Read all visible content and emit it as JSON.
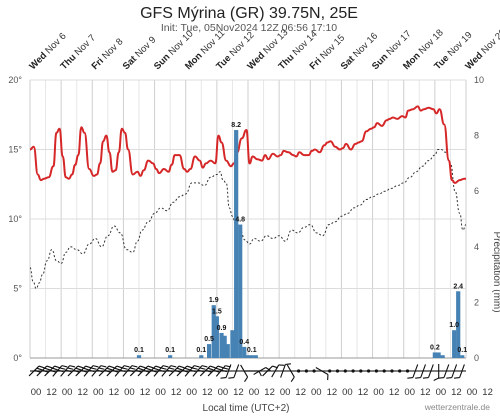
{
  "chart_data": {
    "type": "line",
    "title": "GFS Mýrina (GR) 39.75N, 25E",
    "subtitle": "Init: Tue, 05Nov2024 12Z 06:56 17:10",
    "xlabel": "Local time (UTC+2)",
    "ylabel_right": "Precipitation (mm)",
    "credit": "wetterzentrale.de",
    "y_left_ticks": [
      "0°",
      "5°",
      "10°",
      "15°",
      "20°"
    ],
    "y_left_range": [
      0,
      20
    ],
    "y_right_ticks": [
      "0",
      "2",
      "4",
      "6",
      "8",
      "10"
    ],
    "y_right_range": [
      0,
      10
    ],
    "days": [
      {
        "dow": "Wed",
        "date": "Nov 6"
      },
      {
        "dow": "Thu",
        "date": "Nov 7"
      },
      {
        "dow": "Fri",
        "date": "Nov 8"
      },
      {
        "dow": "Sat",
        "date": "Nov 9"
      },
      {
        "dow": "Sun",
        "date": "Nov 10"
      },
      {
        "dow": "Mon",
        "date": "Nov 11"
      },
      {
        "dow": "Tue",
        "date": "Nov 12"
      },
      {
        "dow": "Wed",
        "date": "Nov 13"
      },
      {
        "dow": "Thu",
        "date": "Nov 14"
      },
      {
        "dow": "Fri",
        "date": "Nov 15"
      },
      {
        "dow": "Sat",
        "date": "Nov 16"
      },
      {
        "dow": "Sun",
        "date": "Nov 17"
      },
      {
        "dow": "Mon",
        "date": "Nov 18"
      },
      {
        "dow": "Tue",
        "date": "Nov 19"
      },
      {
        "dow": "Wed",
        "date": "Nov 20"
      }
    ],
    "hour_labels": [
      "00",
      "12",
      "00",
      "12",
      "00",
      "12",
      "00",
      "12",
      "00",
      "12",
      "00",
      "12",
      "00",
      "12",
      "00",
      "12",
      "00",
      "12",
      "00",
      "12",
      "00",
      "12",
      "00",
      "12",
      "00",
      "12",
      "00",
      "12",
      "00",
      "12"
    ],
    "series": [
      {
        "name": "2m temperature",
        "color": "#d62728",
        "unit": "°C",
        "x_days": [
          0,
          0.12,
          0.25,
          0.35,
          0.45,
          0.6,
          0.75,
          0.85,
          0.95,
          1.05,
          1.15,
          1.25,
          1.35,
          1.45,
          1.55,
          1.65,
          1.75,
          1.9,
          2.05,
          2.15,
          2.25,
          2.35,
          2.45,
          2.55,
          2.65,
          2.75,
          2.85,
          2.95,
          3.05,
          3.15,
          3.3,
          3.45,
          3.55,
          3.65,
          3.8,
          3.95,
          4.05,
          4.15,
          4.3,
          4.45,
          4.55,
          4.65,
          4.8,
          4.95,
          5.05,
          5.15,
          5.3,
          5.45,
          5.55,
          5.65,
          5.8,
          5.95,
          6.05,
          6.15,
          6.3,
          6.45,
          6.55,
          6.65,
          6.8,
          6.95,
          7.05,
          7.15,
          7.3,
          7.45,
          7.55,
          7.65,
          7.8,
          7.95,
          8.05,
          8.15,
          8.3,
          8.45,
          8.55,
          8.65,
          8.8,
          8.95,
          9.05,
          9.15,
          9.3,
          9.45,
          9.55,
          9.65,
          9.8,
          9.95,
          10.05,
          10.15,
          10.3,
          10.45,
          10.55,
          10.65,
          10.8,
          10.95,
          11.05,
          11.15,
          11.3,
          11.45,
          11.55,
          11.65,
          11.8,
          11.95,
          12.05,
          12.15,
          12.3,
          12.45,
          12.55,
          12.65,
          12.8,
          12.95,
          13.05,
          13.15,
          13.3,
          13.45,
          13.55,
          13.65,
          13.8,
          13.95,
          14.0
        ],
        "values": [
          15.0,
          15.2,
          13.2,
          12.8,
          12.9,
          13.0,
          13.8,
          16.2,
          16.5,
          14.5,
          13.0,
          12.9,
          13.2,
          13.9,
          14.6,
          16.6,
          16.2,
          13.6,
          13.1,
          13.2,
          14.0,
          15.6,
          16.0,
          14.8,
          13.4,
          13.5,
          14.8,
          16.5,
          16.2,
          15.0,
          13.2,
          13.4,
          13.1,
          13.5,
          14.2,
          14.0,
          13.6,
          13.3,
          13.6,
          13.4,
          13.9,
          14.6,
          14.6,
          13.6,
          13.4,
          13.6,
          14.5,
          14.2,
          13.7,
          14.0,
          14.2,
          14.0,
          16.0,
          15.5,
          14.2,
          13.8,
          14.0,
          14.8,
          15.8,
          16.4,
          14.0,
          14.5,
          14.3,
          14.2,
          14.6,
          14.3,
          14.7,
          14.5,
          14.6,
          14.9,
          14.8,
          14.6,
          14.5,
          14.8,
          14.6,
          14.6,
          14.9,
          15.0,
          14.8,
          15.3,
          15.5,
          15.6,
          15.2,
          15.0,
          15.1,
          15.4,
          15.0,
          15.4,
          15.5,
          15.6,
          16.3,
          16.5,
          16.6,
          16.9,
          16.7,
          17.1,
          17.2,
          17.3,
          17.2,
          17.4,
          17.3,
          17.8,
          17.9,
          18.1,
          17.8,
          17.9,
          18.0,
          17.9,
          17.6,
          17.9,
          16.8,
          14.2,
          12.8,
          12.6,
          12.8,
          12.9,
          12.9
        ]
      },
      {
        "name": "Dew point",
        "color": "#333333",
        "unit": "°C",
        "x_days": [
          0,
          0.1,
          0.2,
          0.3,
          0.4,
          0.55,
          0.7,
          0.85,
          1.0,
          1.15,
          1.3,
          1.5,
          1.7,
          1.9,
          2.1,
          2.3,
          2.5,
          2.7,
          2.9,
          3.1,
          3.3,
          3.45,
          3.6,
          3.8,
          4.0,
          4.2,
          4.4,
          4.6,
          4.8,
          5.0,
          5.2,
          5.4,
          5.6,
          5.8,
          6.0,
          6.1,
          6.2,
          6.3,
          6.4,
          6.5,
          6.6,
          6.75,
          6.9,
          7.05,
          7.2,
          7.4,
          7.6,
          7.8,
          8.0,
          8.2,
          8.4,
          8.6,
          8.8,
          9.0,
          9.2,
          9.4,
          9.6,
          9.8,
          10.0,
          10.2,
          10.4,
          10.6,
          10.8,
          11.0,
          11.2,
          11.4,
          11.6,
          11.8,
          12.0,
          12.2,
          12.4,
          12.6,
          12.8,
          13.0,
          13.1,
          13.2,
          13.35,
          13.5,
          13.65,
          13.8,
          13.9,
          14.0
        ],
        "values": [
          6.5,
          5.5,
          5.0,
          5.4,
          6.0,
          7.0,
          7.8,
          7.0,
          6.8,
          7.6,
          8.0,
          7.8,
          7.5,
          8.2,
          8.6,
          8.0,
          8.8,
          9.5,
          9.0,
          7.8,
          7.6,
          8.4,
          9.2,
          9.8,
          10.4,
          10.8,
          10.6,
          11.2,
          11.6,
          11.8,
          12.6,
          12.6,
          12.4,
          13.0,
          13.2,
          13.4,
          12.8,
          12.6,
          10.8,
          10.2,
          9.6,
          9.2,
          8.5,
          8.2,
          8.6,
          8.4,
          8.8,
          8.6,
          8.8,
          8.4,
          9.2,
          9.0,
          9.4,
          9.6,
          9.0,
          8.8,
          9.6,
          9.8,
          10.2,
          10.4,
          10.8,
          11.0,
          11.4,
          11.6,
          11.8,
          12.0,
          12.2,
          12.4,
          12.6,
          13.0,
          13.4,
          13.8,
          14.2,
          14.6,
          15.0,
          15.0,
          14.8,
          14.0,
          12.0,
          10.4,
          9.2,
          9.6
        ]
      }
    ],
    "precipitation": {
      "name": "Precipitation",
      "color": "#4682b4",
      "unit": "mm",
      "x_days": [
        3.5,
        4.5,
        5.5,
        5.75,
        5.9,
        6.0,
        6.15,
        6.25,
        6.35,
        6.5,
        6.62,
        6.75,
        6.88,
        7.0,
        7.12,
        7.25,
        13.0,
        13.12,
        13.25,
        13.62,
        13.75,
        13.88
      ],
      "values": [
        0.1,
        0.1,
        0.1,
        0.5,
        1.9,
        1.5,
        0.9,
        0.8,
        0.5,
        1.0,
        8.2,
        4.8,
        0.4,
        0.1,
        0.1,
        0.1,
        0.2,
        0.2,
        0.1,
        1.0,
        2.4,
        0.1
      ],
      "labels": [
        {
          "i": 0,
          "text": "0.1"
        },
        {
          "i": 1,
          "text": "0.1"
        },
        {
          "i": 2,
          "text": "0.1"
        },
        {
          "i": 3,
          "text": "0.5"
        },
        {
          "i": 4,
          "text": "1.9"
        },
        {
          "i": 5,
          "text": "1.5"
        },
        {
          "i": 6,
          "text": "0.9"
        },
        {
          "i": 10,
          "text": "8.2"
        },
        {
          "i": 11,
          "text": "4.8"
        },
        {
          "i": 12,
          "text": "0.4"
        },
        {
          "i": 14,
          "text": "0.1"
        },
        {
          "i": 16,
          "text": "0.2"
        },
        {
          "i": 19,
          "text": "1.0"
        },
        {
          "i": 20,
          "text": "2.4"
        },
        {
          "i": 21,
          "text": "0.1"
        }
      ]
    },
    "wind_barbs": {
      "count": 56,
      "directions_deg": [
        45,
        45,
        45,
        40,
        40,
        45,
        45,
        40,
        40,
        45,
        45,
        40,
        40,
        45,
        45,
        45,
        40,
        40,
        45,
        45,
        40,
        40,
        45,
        45,
        40,
        200,
        200,
        150,
        90,
        60,
        45,
        30,
        20,
        150,
        90,
        90,
        90,
        120,
        90,
        90,
        90,
        90,
        90,
        90,
        90,
        90,
        90,
        90,
        90,
        200,
        200,
        200,
        180,
        200,
        200,
        200
      ],
      "speed_class": [
        3,
        3,
        3,
        3,
        3,
        3,
        3,
        3,
        3,
        3,
        3,
        3,
        3,
        3,
        3,
        3,
        3,
        3,
        3,
        3,
        3,
        3,
        3,
        3,
        3,
        1,
        1,
        1,
        1,
        1,
        1,
        1,
        1,
        1,
        0,
        0,
        0,
        1,
        0,
        0,
        0,
        0,
        0,
        0,
        0,
        0,
        0,
        0,
        0,
        1,
        1,
        1,
        1,
        1,
        1,
        1
      ]
    }
  }
}
